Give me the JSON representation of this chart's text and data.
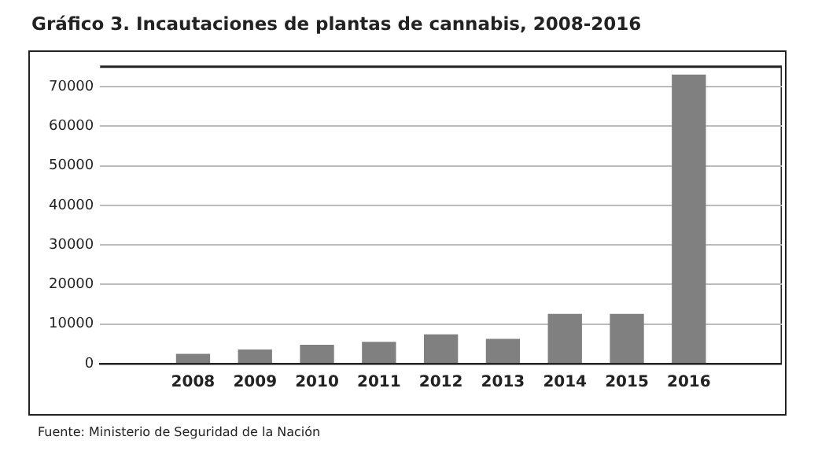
{
  "chart_data": {
    "type": "bar",
    "title": "Gráfico 3. Incautaciones de plantas de cannabis, 2008-2016",
    "categories": [
      null,
      "2008",
      "2009",
      "2010",
      "2011",
      "2012",
      "2013",
      "2014",
      "2015",
      "2016",
      null
    ],
    "values": [
      null,
      2500,
      3600,
      4750,
      5500,
      7400,
      6250,
      12600,
      12600,
      73000,
      null
    ],
    "color": "#808080",
    "ylim": [
      0,
      75000
    ],
    "yticks": [
      0,
      10000,
      20000,
      30000,
      40000,
      50000,
      60000,
      70000
    ],
    "grid": "y",
    "annotations": [
      "Fuente: Ministerio de Seguridad de la Nación"
    ]
  }
}
